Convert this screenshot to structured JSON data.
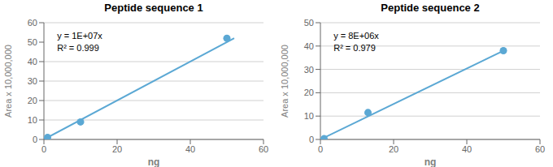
{
  "chart_data": [
    {
      "type": "scatter",
      "title": "Peptide sequence 1",
      "series": [
        {
          "type": "scatter",
          "color": "#5ba8d4",
          "x": [
            1,
            10,
            50
          ],
          "values": [
            1.0,
            9.0,
            52.0
          ]
        },
        {
          "type": "line",
          "color": "#5ba8d4",
          "x": [
            0,
            52
          ],
          "values": [
            0,
            52.0
          ]
        }
      ],
      "annotations": [
        "y = 1E+07x",
        "R² = 0.999"
      ],
      "xlabel": "ng",
      "ylabel": "Area x 10,000,000",
      "xlim": [
        0,
        60
      ],
      "ylim": [
        0,
        60
      ],
      "xticks": [
        0,
        20,
        40,
        60
      ],
      "yticks": [
        0,
        10,
        20,
        30,
        40,
        50,
        60
      ],
      "grid": "y"
    },
    {
      "type": "scatter",
      "title": "Peptide sequence 2",
      "series": [
        {
          "type": "scatter",
          "color": "#5ba8d4",
          "x": [
            1,
            13,
            50
          ],
          "values": [
            0.3,
            11.5,
            38.0
          ]
        },
        {
          "type": "line",
          "color": "#5ba8d4",
          "x": [
            0,
            50
          ],
          "values": [
            0,
            38.0
          ]
        }
      ],
      "annotations": [
        "y = 8E+06x",
        "R² = 0.979"
      ],
      "xlabel": "ng",
      "ylabel": "Area x 10,000,000",
      "xlim": [
        0,
        60
      ],
      "ylim": [
        0,
        50
      ],
      "xticks": [
        0,
        20,
        40,
        60
      ],
      "yticks": [
        0,
        10,
        20,
        30,
        40,
        50
      ],
      "grid": "y"
    }
  ]
}
